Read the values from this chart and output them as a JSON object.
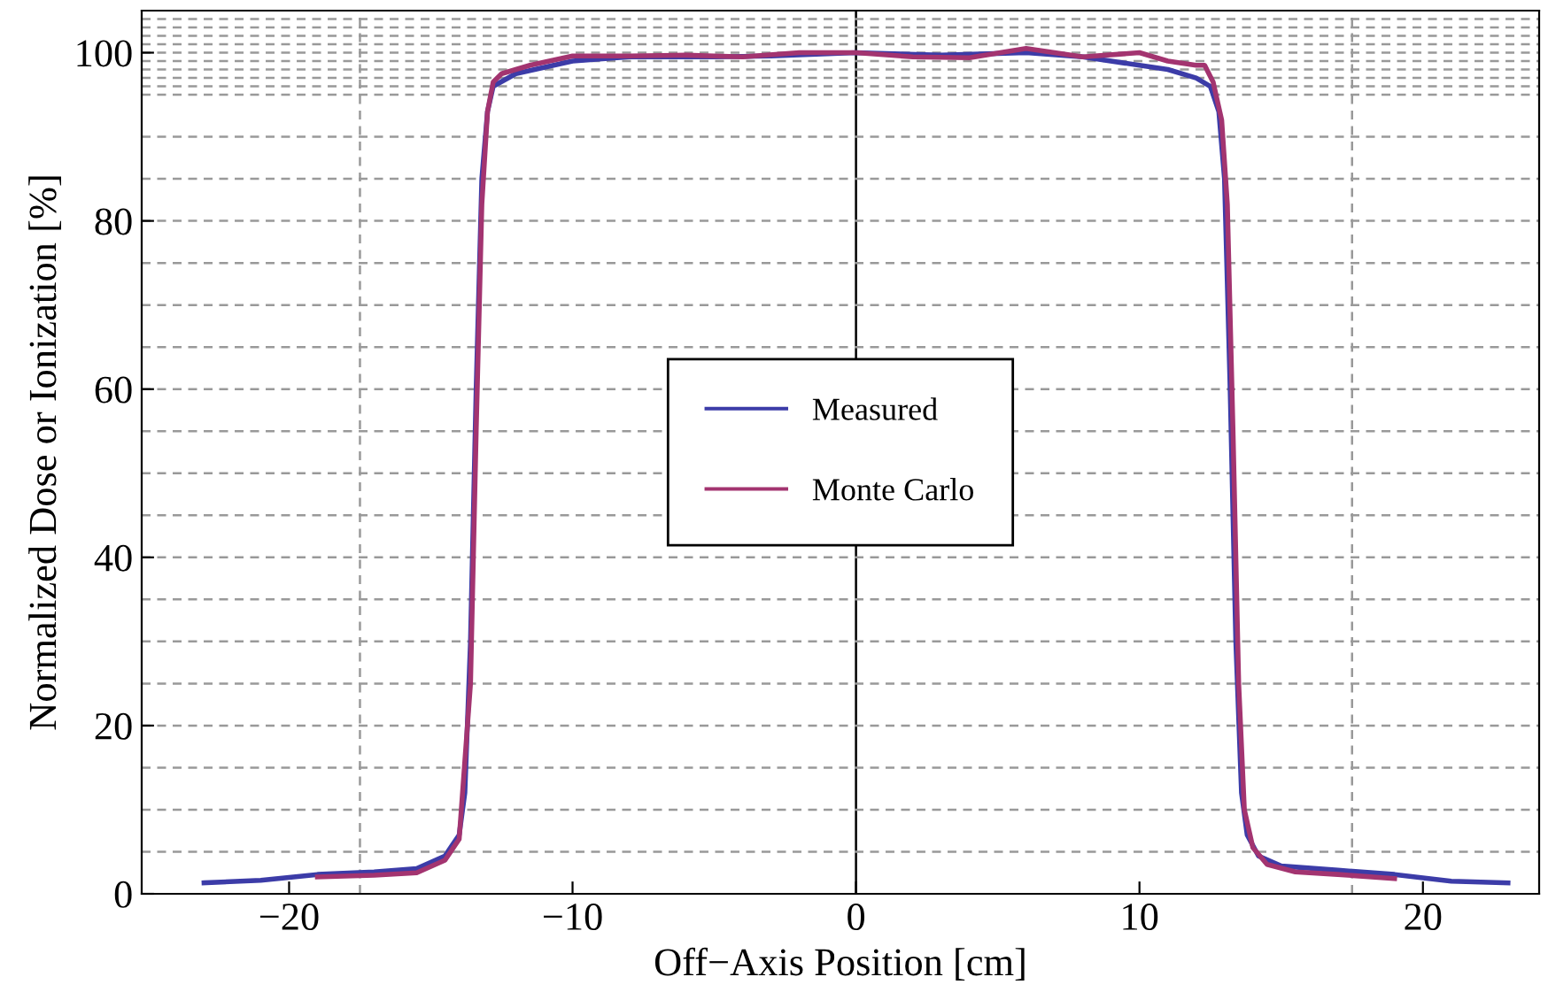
{
  "chart_data": {
    "type": "line",
    "xlabel": "Off−Axis Position [cm]",
    "ylabel": "Normalized Dose or Ionization [%]",
    "xlim": [
      -25.2,
      24.1
    ],
    "ylim": [
      0,
      105
    ],
    "xticks": [
      -20,
      -10,
      0,
      10,
      20
    ],
    "yticks": [
      0,
      20,
      40,
      60,
      80,
      100
    ],
    "grid": false,
    "legend": "center",
    "marker": "none",
    "line_style": "solid",
    "series": [
      {
        "name": "Measured",
        "color": "#3c3ca8",
        "x": [
          -23,
          -21,
          -19,
          -17,
          -15.5,
          -14.5,
          -14,
          -13.8,
          -13.6,
          -13.4,
          -13.2,
          -13,
          -12.8,
          -12,
          -10,
          -8,
          -5,
          -3,
          0,
          3,
          6,
          8,
          10,
          11,
          12,
          12.5,
          12.8,
          13,
          13.2,
          13.4,
          13.6,
          13.8,
          14.2,
          15,
          17,
          19,
          21,
          23
        ],
        "values": [
          1.3,
          1.6,
          2.3,
          2.6,
          3.0,
          4.5,
          7,
          12,
          30,
          60,
          85,
          93,
          96,
          97.5,
          99,
          99.5,
          99.5,
          99.6,
          100,
          99.7,
          100,
          99.5,
          98.5,
          98,
          97,
          96,
          93,
          85,
          60,
          30,
          12,
          7,
          4.5,
          3.3,
          2.8,
          2.3,
          1.5,
          1.3
        ]
      },
      {
        "name": "Monte Carlo",
        "color": "#a33470",
        "x": [
          -19,
          -17,
          -15.5,
          -14.5,
          -14,
          -13.6,
          -13.4,
          -13.2,
          -13,
          -12.8,
          -12.5,
          -11.5,
          -10,
          -8,
          -6,
          -4,
          -2,
          0,
          2,
          4,
          6,
          8,
          10,
          11,
          12,
          12.3,
          12.6,
          12.9,
          13.1,
          13.3,
          13.5,
          13.7,
          14,
          14.5,
          15.5,
          17,
          19
        ],
        "values": [
          2.0,
          2.2,
          2.5,
          4,
          6.5,
          25,
          55,
          82,
          93,
          96.5,
          97.5,
          98.5,
          99.6,
          99.6,
          99.7,
          99.5,
          100,
          100,
          99.5,
          99.4,
          100.5,
          99.5,
          100,
          99,
          98.5,
          98.5,
          96.5,
          92,
          82,
          55,
          25,
          10,
          5.5,
          3.5,
          2.6,
          2.3,
          1.8
        ]
      }
    ],
    "ref_lines": [
      {
        "axis": "x",
        "value": -17.5,
        "color": "#999999",
        "line_style": "dashed"
      },
      {
        "axis": "x",
        "value": 17.5,
        "color": "#999999",
        "line_style": "dashed"
      },
      {
        "axis": "x",
        "value": 0,
        "color": "#000000",
        "line_style": "solid"
      },
      {
        "axis": "y",
        "value": 5,
        "color": "#999999",
        "line_style": "dashed"
      },
      {
        "axis": "y",
        "value": 10,
        "color": "#999999",
        "line_style": "dashed"
      },
      {
        "axis": "y",
        "value": 15,
        "color": "#999999",
        "line_style": "dashed"
      },
      {
        "axis": "y",
        "value": 20,
        "color": "#999999",
        "line_style": "dashed"
      },
      {
        "axis": "y",
        "value": 25,
        "color": "#999999",
        "line_style": "dashed"
      },
      {
        "axis": "y",
        "value": 30,
        "color": "#999999",
        "line_style": "dashed"
      },
      {
        "axis": "y",
        "value": 35,
        "color": "#999999",
        "line_style": "dashed"
      },
      {
        "axis": "y",
        "value": 40,
        "color": "#999999",
        "line_style": "dashed"
      },
      {
        "axis": "y",
        "value": 45,
        "color": "#999999",
        "line_style": "dashed"
      },
      {
        "axis": "y",
        "value": 50,
        "color": "#999999",
        "line_style": "dashed"
      },
      {
        "axis": "y",
        "value": 55,
        "color": "#999999",
        "line_style": "dashed"
      },
      {
        "axis": "y",
        "value": 60,
        "color": "#999999",
        "line_style": "dashed"
      },
      {
        "axis": "y",
        "value": 65,
        "color": "#999999",
        "line_style": "dashed"
      },
      {
        "axis": "y",
        "value": 70,
        "color": "#999999",
        "line_style": "dashed"
      },
      {
        "axis": "y",
        "value": 75,
        "color": "#999999",
        "line_style": "dashed"
      },
      {
        "axis": "y",
        "value": 80,
        "color": "#999999",
        "line_style": "dashed"
      },
      {
        "axis": "y",
        "value": 85,
        "color": "#999999",
        "line_style": "dashed"
      },
      {
        "axis": "y",
        "value": 90,
        "color": "#999999",
        "line_style": "dashed"
      },
      {
        "axis": "y",
        "value": 95,
        "color": "#999999",
        "line_style": "dashed"
      },
      {
        "axis": "y",
        "value": 96,
        "color": "#999999",
        "line_style": "dashed"
      },
      {
        "axis": "y",
        "value": 97,
        "color": "#999999",
        "line_style": "dashed"
      },
      {
        "axis": "y",
        "value": 98,
        "color": "#999999",
        "line_style": "dashed"
      },
      {
        "axis": "y",
        "value": 99,
        "color": "#999999",
        "line_style": "dashed"
      },
      {
        "axis": "y",
        "value": 100,
        "color": "#999999",
        "line_style": "dashed"
      },
      {
        "axis": "y",
        "value": 101,
        "color": "#999999",
        "line_style": "dashed"
      },
      {
        "axis": "y",
        "value": 102,
        "color": "#999999",
        "line_style": "dashed"
      },
      {
        "axis": "y",
        "value": 103,
        "color": "#999999",
        "line_style": "dashed"
      },
      {
        "axis": "y",
        "value": 104,
        "color": "#999999",
        "line_style": "dashed"
      }
    ]
  }
}
